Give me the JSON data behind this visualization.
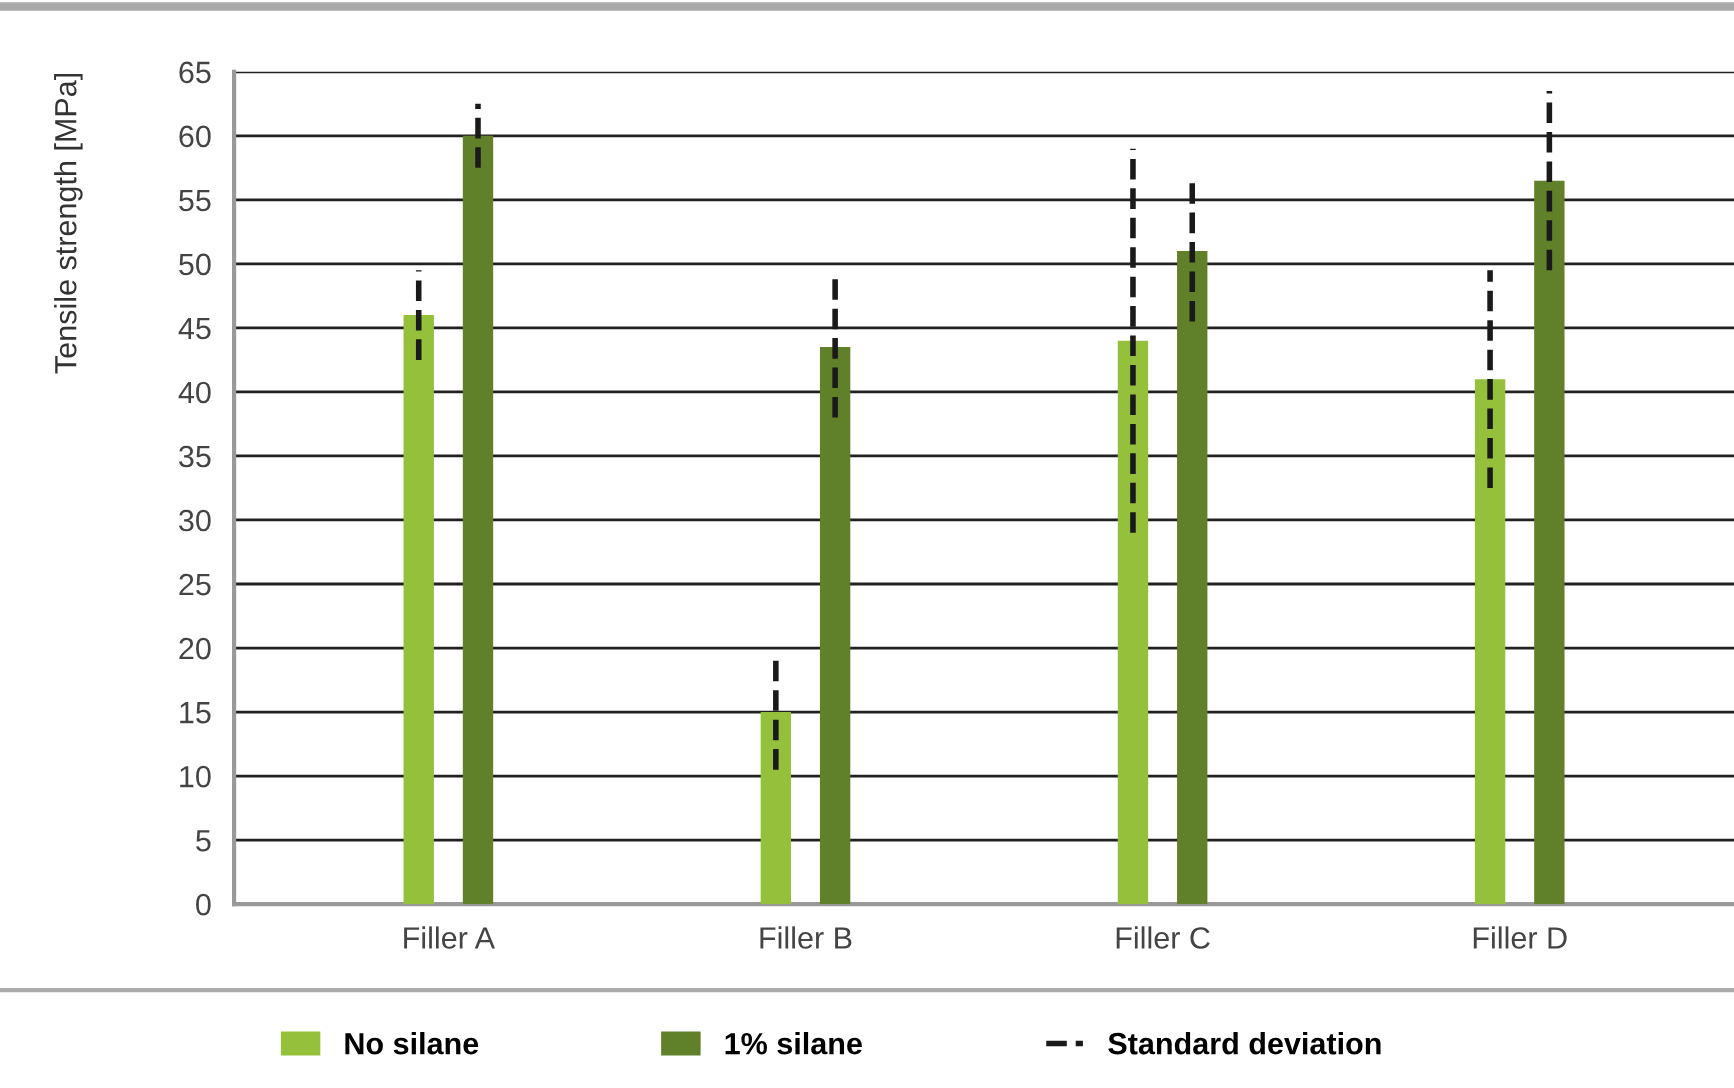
{
  "chart_data": {
    "type": "bar",
    "ylabel": "Tensile strength [MPa]",
    "categories": [
      "Filler A",
      "Filler B",
      "Filler C",
      "Filler D"
    ],
    "series": [
      {
        "name": "No silane",
        "color": "#95c03b",
        "values": [
          46,
          15,
          44,
          41
        ],
        "errors": [
          3.5,
          4.5,
          15,
          8.5
        ]
      },
      {
        "name": "1% silane",
        "color": "#60802a",
        "values": [
          60,
          43.5,
          51,
          56.5
        ],
        "errors": [
          2.5,
          5.5,
          5.5,
          7
        ]
      }
    ],
    "ylim": [
      0,
      65
    ],
    "yticks": [
      0,
      5,
      10,
      15,
      20,
      25,
      30,
      35,
      40,
      45,
      50,
      55,
      60,
      65
    ],
    "grid": "y",
    "legend": "bottom",
    "line_style": "dashed",
    "annotations": [
      "Standard deviation"
    ]
  }
}
